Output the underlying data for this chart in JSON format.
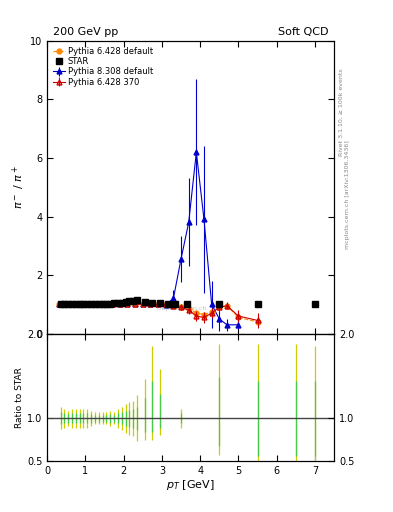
{
  "title_left": "200 GeV pp",
  "title_right": "Soft QCD",
  "ylabel_main": "$\\pi^-$ / $\\pi^+$",
  "ylabel_ratio": "Ratio to STAR",
  "xlabel": "$p_T$ [GeV]",
  "right_label_top": "Rivet 3.1.10, ≥ 100k events",
  "right_label_bottom": "mcplots.cern.ch [arXiv:1306.3436]",
  "xlim": [
    0,
    7.5
  ],
  "ylim_main": [
    0,
    10
  ],
  "ylim_ratio": [
    0.5,
    2.0
  ],
  "star_x": [
    0.35,
    0.45,
    0.55,
    0.65,
    0.75,
    0.85,
    0.95,
    1.05,
    1.15,
    1.25,
    1.35,
    1.45,
    1.55,
    1.65,
    1.75,
    1.85,
    1.95,
    2.05,
    2.15,
    2.25,
    2.35,
    2.55,
    2.75,
    2.95,
    3.15,
    3.35,
    3.65,
    4.5,
    5.5,
    7.0
  ],
  "star_y": [
    1.01,
    1.01,
    1.0,
    1.01,
    1.01,
    1.01,
    1.01,
    1.01,
    1.01,
    1.01,
    1.01,
    1.01,
    1.02,
    1.01,
    1.03,
    1.04,
    1.05,
    1.09,
    1.12,
    1.13,
    1.14,
    1.09,
    1.05,
    1.03,
    1.01,
    1.02,
    1.01,
    1.01,
    1.01,
    1.01
  ],
  "star_color": "black",
  "py6_370_x": [
    0.3,
    0.5,
    0.7,
    0.9,
    1.1,
    1.3,
    1.5,
    1.7,
    1.9,
    2.1,
    2.3,
    2.5,
    2.7,
    2.9,
    3.1,
    3.3,
    3.5,
    3.7,
    3.9,
    4.1,
    4.3,
    4.5,
    4.7,
    5.0,
    5.5
  ],
  "py6_370_y": [
    1.0,
    1.0,
    1.0,
    1.0,
    1.0,
    1.0,
    1.0,
    1.0,
    1.0,
    1.0,
    1.0,
    1.0,
    1.0,
    1.0,
    1.0,
    0.95,
    0.9,
    0.8,
    0.6,
    0.55,
    0.7,
    0.9,
    0.95,
    0.6,
    0.45
  ],
  "py6_370_yerr": [
    0.02,
    0.02,
    0.02,
    0.02,
    0.02,
    0.02,
    0.02,
    0.02,
    0.02,
    0.02,
    0.02,
    0.02,
    0.02,
    0.02,
    0.05,
    0.08,
    0.1,
    0.12,
    0.18,
    0.2,
    0.18,
    0.15,
    0.12,
    0.2,
    0.25
  ],
  "py6_370_color": "#cc0000",
  "py6_def_x": [
    0.3,
    0.5,
    0.7,
    0.9,
    1.1,
    1.3,
    1.5,
    1.7,
    1.9,
    2.1,
    2.3,
    2.5,
    2.7,
    2.9,
    3.1,
    3.3,
    3.5,
    3.7,
    3.9,
    4.1,
    4.3,
    4.5,
    4.7,
    5.0,
    5.5
  ],
  "py6_def_y": [
    1.0,
    1.0,
    1.0,
    1.0,
    1.0,
    1.0,
    1.0,
    1.0,
    1.0,
    1.0,
    1.0,
    1.0,
    1.0,
    1.0,
    1.0,
    0.95,
    0.9,
    0.85,
    0.7,
    0.65,
    0.75,
    0.9,
    0.95,
    0.55,
    0.4
  ],
  "py6_def_color": "#ff8800",
  "py8_def_x": [
    0.3,
    0.5,
    0.7,
    0.9,
    1.1,
    1.3,
    1.5,
    1.7,
    1.9,
    2.1,
    2.3,
    2.5,
    2.7,
    2.9,
    3.1,
    3.3,
    3.5,
    3.7,
    3.9,
    4.1,
    4.3,
    4.5,
    4.7,
    5.0
  ],
  "py8_def_y": [
    1.01,
    1.01,
    1.01,
    1.01,
    1.01,
    1.01,
    1.01,
    1.01,
    1.01,
    1.01,
    1.01,
    1.0,
    1.0,
    1.0,
    0.98,
    1.2,
    2.55,
    3.8,
    6.2,
    3.9,
    1.0,
    0.5,
    0.3,
    0.3
  ],
  "py8_def_yerr_lo": [
    0.05,
    0.05,
    0.05,
    0.05,
    0.05,
    0.05,
    0.05,
    0.05,
    0.05,
    0.05,
    0.05,
    0.05,
    0.05,
    0.05,
    0.1,
    0.3,
    0.8,
    1.5,
    2.5,
    2.5,
    0.8,
    0.4,
    0.2,
    0.15
  ],
  "py8_def_yerr_hi": [
    0.05,
    0.05,
    0.05,
    0.05,
    0.05,
    0.05,
    0.05,
    0.05,
    0.05,
    0.05,
    0.05,
    0.05,
    0.05,
    0.05,
    0.1,
    0.3,
    0.8,
    1.5,
    2.5,
    2.5,
    0.8,
    0.4,
    0.2,
    0.15
  ],
  "py8_def_color": "#0000cc",
  "ratio_yellow_x": [
    0.35,
    0.45,
    0.55,
    0.65,
    0.75,
    0.85,
    0.95,
    1.05,
    1.15,
    1.25,
    1.35,
    1.45,
    1.55,
    1.65,
    1.75,
    1.85,
    1.95,
    2.05,
    2.15,
    2.25,
    2.35,
    2.55,
    2.75,
    2.95,
    3.5,
    4.5,
    5.5,
    6.5,
    7.0
  ],
  "ratio_yellow_lo": [
    0.87,
    0.89,
    0.91,
    0.89,
    0.89,
    0.89,
    0.89,
    0.89,
    0.91,
    0.93,
    0.93,
    0.93,
    0.93,
    0.91,
    0.93,
    0.89,
    0.86,
    0.83,
    0.81,
    0.79,
    0.73,
    0.74,
    0.74,
    0.81,
    0.89,
    0.57,
    0.45,
    0.45,
    0.44
  ],
  "ratio_yellow_hi": [
    1.13,
    1.11,
    1.09,
    1.11,
    1.11,
    1.11,
    1.11,
    1.11,
    1.09,
    1.07,
    1.07,
    1.07,
    1.07,
    1.09,
    1.07,
    1.11,
    1.14,
    1.17,
    1.19,
    1.21,
    1.27,
    1.46,
    1.85,
    1.58,
    1.11,
    1.88,
    1.88,
    1.88,
    1.85
  ],
  "ratio_green_x": [
    0.35,
    0.45,
    0.55,
    0.65,
    0.75,
    0.85,
    0.95,
    1.05,
    1.15,
    1.25,
    1.35,
    1.45,
    1.55,
    1.65,
    1.75,
    1.85,
    1.95,
    2.05,
    2.15,
    2.25,
    2.35,
    2.55,
    2.75,
    2.95,
    3.5,
    4.5,
    5.5,
    6.5,
    7.0
  ],
  "ratio_green_lo": [
    0.93,
    0.94,
    0.95,
    0.94,
    0.94,
    0.94,
    0.94,
    0.94,
    0.95,
    0.96,
    0.96,
    0.96,
    0.96,
    0.95,
    0.96,
    0.94,
    0.93,
    0.91,
    0.9,
    0.89,
    0.86,
    0.84,
    0.84,
    0.89,
    0.94,
    0.68,
    0.56,
    0.56,
    0.56
  ],
  "ratio_green_hi": [
    1.07,
    1.06,
    1.05,
    1.06,
    1.06,
    1.06,
    1.06,
    1.06,
    1.05,
    1.04,
    1.04,
    1.04,
    1.04,
    1.05,
    1.04,
    1.06,
    1.07,
    1.09,
    1.1,
    1.11,
    1.14,
    1.24,
    1.44,
    1.29,
    1.06,
    1.49,
    1.44,
    1.44,
    1.44
  ]
}
